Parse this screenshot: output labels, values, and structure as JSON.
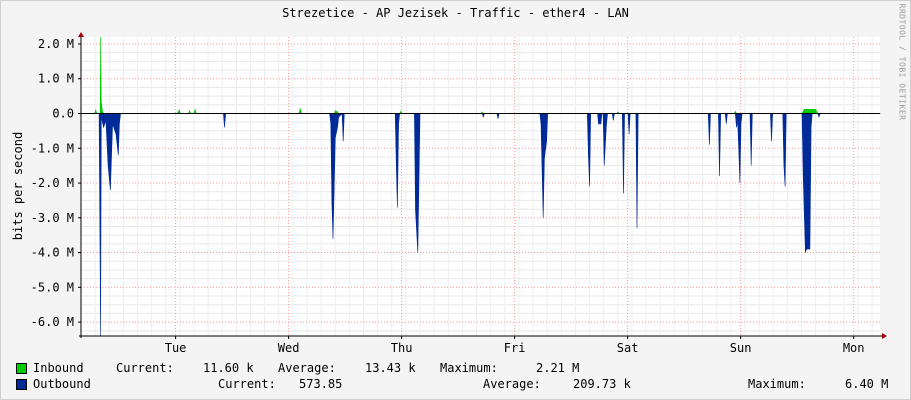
{
  "title": "Strezetice - AP Jezisek - Traffic - ether4 - LAN",
  "vendor_text": "RRDTOOL / TOBI OETIKER",
  "colors": {
    "inbound": "#00cc00",
    "outbound": "#002a97",
    "grid": "#ff9999",
    "axis": "#000000",
    "plot_bg": "#ffffff",
    "page_bg": "#f4f4f4"
  },
  "chart_data": {
    "type": "area",
    "ylabel": "bits per second",
    "ylim": [
      -6.4,
      2.2
    ],
    "y_unit": "M",
    "yticks": [
      "2.0 M",
      "1.0 M",
      "0.0",
      "-1.0 M",
      "-2.0 M",
      "-3.0 M",
      "-4.0 M",
      "-5.0 M",
      "-6.0 M"
    ],
    "ytick_values": [
      2.0,
      1.0,
      0.0,
      -1.0,
      -2.0,
      -3.0,
      -4.0,
      -5.0,
      -6.0
    ],
    "xticks": [
      "Tue",
      "Wed",
      "Thu",
      "Fri",
      "Sat",
      "Sun",
      "Mon"
    ],
    "xlim_days": [
      0,
      7.07
    ],
    "xtick_days": [
      0.837,
      1.837,
      2.837,
      3.837,
      4.837,
      5.837,
      6.837
    ],
    "grid": true,
    "series": [
      {
        "name": "Inbound",
        "values_M": [
          [
            0.0,
            0.0
          ],
          [
            0.12,
            0.0
          ],
          [
            0.13,
            0.1
          ],
          [
            0.14,
            0.0
          ],
          [
            0.17,
            0.0
          ],
          [
            0.173,
            2.21
          ],
          [
            0.18,
            0.35
          ],
          [
            0.19,
            0.05
          ],
          [
            0.2,
            0.0
          ],
          [
            0.85,
            0.0
          ],
          [
            0.87,
            0.1
          ],
          [
            0.88,
            0.0
          ],
          [
            0.95,
            0.0
          ],
          [
            0.96,
            0.08
          ],
          [
            0.97,
            0.0
          ],
          [
            1.0,
            0.0
          ],
          [
            1.01,
            0.12
          ],
          [
            1.02,
            0.0
          ],
          [
            1.93,
            0.0
          ],
          [
            1.94,
            0.15
          ],
          [
            1.95,
            0.0
          ],
          [
            2.24,
            0.0
          ],
          [
            2.25,
            0.08
          ],
          [
            2.27,
            0.05
          ],
          [
            2.28,
            0.0
          ],
          [
            2.82,
            0.0
          ],
          [
            2.83,
            0.07
          ],
          [
            2.84,
            0.0
          ],
          [
            3.54,
            0.0
          ],
          [
            3.55,
            0.05
          ],
          [
            3.56,
            0.0
          ],
          [
            4.74,
            0.0
          ],
          [
            4.75,
            0.05
          ],
          [
            4.76,
            0.0
          ],
          [
            5.78,
            0.0
          ],
          [
            5.79,
            0.06
          ],
          [
            5.8,
            0.0
          ],
          [
            6.38,
            0.0
          ],
          [
            6.4,
            0.12
          ],
          [
            6.5,
            0.12
          ],
          [
            6.52,
            0.0
          ],
          [
            7.07,
            0.0
          ]
        ]
      },
      {
        "name": "Outbound",
        "values_M": [
          [
            0.0,
            0.0
          ],
          [
            0.16,
            0.0
          ],
          [
            0.173,
            -6.4
          ],
          [
            0.18,
            -0.1
          ],
          [
            0.2,
            -0.4
          ],
          [
            0.22,
            -0.2
          ],
          [
            0.24,
            -1.5
          ],
          [
            0.26,
            -2.2
          ],
          [
            0.28,
            -0.3
          ],
          [
            0.31,
            -0.6
          ],
          [
            0.33,
            -1.2
          ],
          [
            0.34,
            -0.3
          ],
          [
            0.35,
            0.0
          ],
          [
            1.26,
            0.0
          ],
          [
            1.27,
            -0.4
          ],
          [
            1.28,
            0.0
          ],
          [
            2.2,
            0.0
          ],
          [
            2.21,
            -0.3
          ],
          [
            2.22,
            -2.6
          ],
          [
            2.23,
            -3.6
          ],
          [
            2.25,
            -0.7
          ],
          [
            2.27,
            -0.4
          ],
          [
            2.28,
            -0.1
          ],
          [
            2.31,
            0.0
          ],
          [
            2.32,
            -0.8
          ],
          [
            2.33,
            0.0
          ],
          [
            2.78,
            0.0
          ],
          [
            2.79,
            -1.5
          ],
          [
            2.8,
            -2.7
          ],
          [
            2.81,
            -0.3
          ],
          [
            2.82,
            0.0
          ],
          [
            2.95,
            0.0
          ],
          [
            2.96,
            -2.8
          ],
          [
            2.98,
            -4.0
          ],
          [
            2.99,
            -2.0
          ],
          [
            3.0,
            0.0
          ],
          [
            3.55,
            0.0
          ],
          [
            3.56,
            -0.1
          ],
          [
            3.57,
            0.0
          ],
          [
            3.68,
            0.0
          ],
          [
            3.69,
            -0.15
          ],
          [
            3.7,
            0.0
          ],
          [
            4.06,
            0.0
          ],
          [
            4.07,
            -0.3
          ],
          [
            4.09,
            -3.0
          ],
          [
            4.1,
            -1.3
          ],
          [
            4.12,
            -0.8
          ],
          [
            4.13,
            0.0
          ],
          [
            4.48,
            0.0
          ],
          [
            4.49,
            -1.2
          ],
          [
            4.5,
            -2.1
          ],
          [
            4.51,
            0.0
          ],
          [
            4.57,
            0.0
          ],
          [
            4.58,
            -0.3
          ],
          [
            4.6,
            -0.3
          ],
          [
            4.61,
            0.0
          ],
          [
            4.62,
            0.0
          ],
          [
            4.63,
            -1.5
          ],
          [
            4.65,
            -0.3
          ],
          [
            4.66,
            0.0
          ],
          [
            4.7,
            0.0
          ],
          [
            4.71,
            -0.2
          ],
          [
            4.72,
            0.0
          ],
          [
            4.79,
            0.0
          ],
          [
            4.8,
            -2.3
          ],
          [
            4.81,
            0.0
          ],
          [
            4.84,
            0.0
          ],
          [
            4.85,
            -0.6
          ],
          [
            4.86,
            0.0
          ],
          [
            4.91,
            0.0
          ],
          [
            4.92,
            -3.3
          ],
          [
            4.93,
            0.0
          ],
          [
            5.55,
            0.0
          ],
          [
            5.56,
            -0.9
          ],
          [
            5.57,
            0.0
          ],
          [
            5.64,
            0.0
          ],
          [
            5.65,
            -1.8
          ],
          [
            5.66,
            0.0
          ],
          [
            5.7,
            0.0
          ],
          [
            5.71,
            -0.3
          ],
          [
            5.72,
            0.0
          ],
          [
            5.79,
            0.0
          ],
          [
            5.8,
            -0.4
          ],
          [
            5.81,
            -0.2
          ],
          [
            5.82,
            -1.0
          ],
          [
            5.83,
            -2.0
          ],
          [
            5.84,
            -0.3
          ],
          [
            5.85,
            0.0
          ],
          [
            5.92,
            0.0
          ],
          [
            5.93,
            -1.5
          ],
          [
            5.94,
            0.0
          ],
          [
            6.1,
            0.0
          ],
          [
            6.11,
            -0.8
          ],
          [
            6.12,
            0.0
          ],
          [
            6.21,
            0.0
          ],
          [
            6.22,
            -1.5
          ],
          [
            6.23,
            -2.1
          ],
          [
            6.24,
            0.0
          ],
          [
            6.38,
            0.0
          ],
          [
            6.39,
            -1.8
          ],
          [
            6.41,
            -4.0
          ],
          [
            6.42,
            -3.9
          ],
          [
            6.44,
            -3.9
          ],
          [
            6.45,
            -3.9
          ],
          [
            6.46,
            -0.4
          ],
          [
            6.47,
            0.0
          ],
          [
            6.52,
            0.0
          ],
          [
            6.53,
            -0.1
          ],
          [
            6.54,
            0.0
          ],
          [
            7.07,
            0.0
          ]
        ]
      }
    ]
  },
  "legend": {
    "inbound": {
      "name": "Inbound",
      "current_label": "Current:",
      "current": "11.60 k",
      "average_label": "Average:",
      "average": "13.43 k",
      "maximum_label": "Maximum:",
      "maximum": "2.21 M"
    },
    "outbound": {
      "name": "Outbound",
      "current_label": "Current:",
      "current": "573.85",
      "average_label": "Average:",
      "average": "209.73 k",
      "maximum_label": "Maximum:",
      "maximum": "6.40 M"
    }
  }
}
